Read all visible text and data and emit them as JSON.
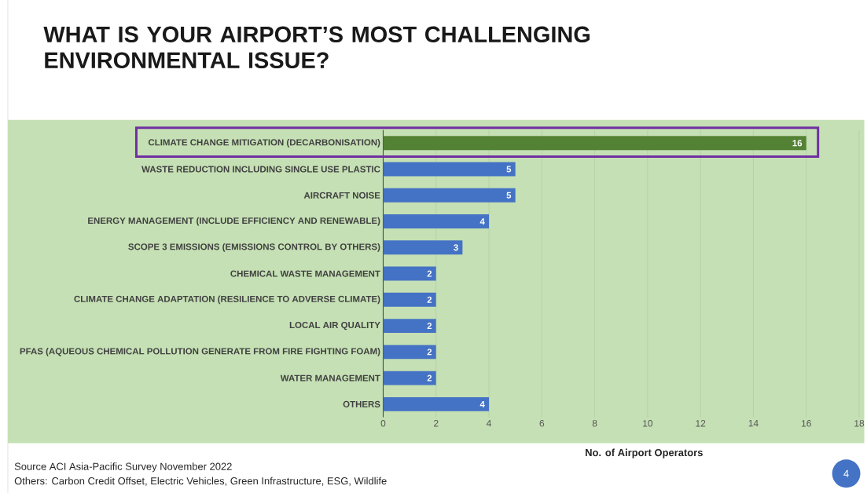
{
  "chart_data": {
    "type": "bar",
    "orientation": "horizontal",
    "title": "WHAT IS YOUR AIRPORT’S MOST CHALLENGING ENVIRONMENTAL ISSUE?",
    "categories": [
      "CLIMATE CHANGE MITIGATION (DECARBONISATION)",
      "WASTE REDUCTION INCLUDING SINGLE USE PLASTIC",
      "AIRCRAFT NOISE",
      "ENERGY MANAGEMENT (INCLUDE EFFICIENCY AND RENEWABLE)",
      "SCOPE 3 EMISSIONS (EMISSIONS CONTROL BY OTHERS)",
      "CHEMICAL WASTE MANAGEMENT",
      "CLIMATE CHANGE ADAPTATION (RESILIENCE TO ADVERSE CLIMATE)",
      "LOCAL AIR QUALITY",
      "PFAS (AQUEOUS CHEMICAL POLLUTION GENERATE FROM FIRE FIGHTING FOAM)",
      "WATER MANAGEMENT",
      "OTHERS"
    ],
    "values": [
      16,
      5,
      5,
      4,
      3,
      2,
      2,
      2,
      2,
      2,
      4
    ],
    "colors": [
      "#548235",
      "#4472c4",
      "#4472c4",
      "#4472c4",
      "#4472c4",
      "#4472c4",
      "#4472c4",
      "#4472c4",
      "#4472c4",
      "#4472c4",
      "#4472c4"
    ],
    "data_labels": true,
    "xlim": [
      0,
      18
    ],
    "xticks": [
      0,
      2,
      4,
      6,
      8,
      10,
      12,
      14,
      16,
      18
    ],
    "grid": "x",
    "xlabel": "No. of Airport Operators",
    "annotations": [
      "Source ACI Asia-Pacific Survey November 2022",
      "Others: Carbon Credit Offset, Electric Vehicles, Green Infrastructure, ESG, Wildlife",
      "4"
    ]
  }
}
